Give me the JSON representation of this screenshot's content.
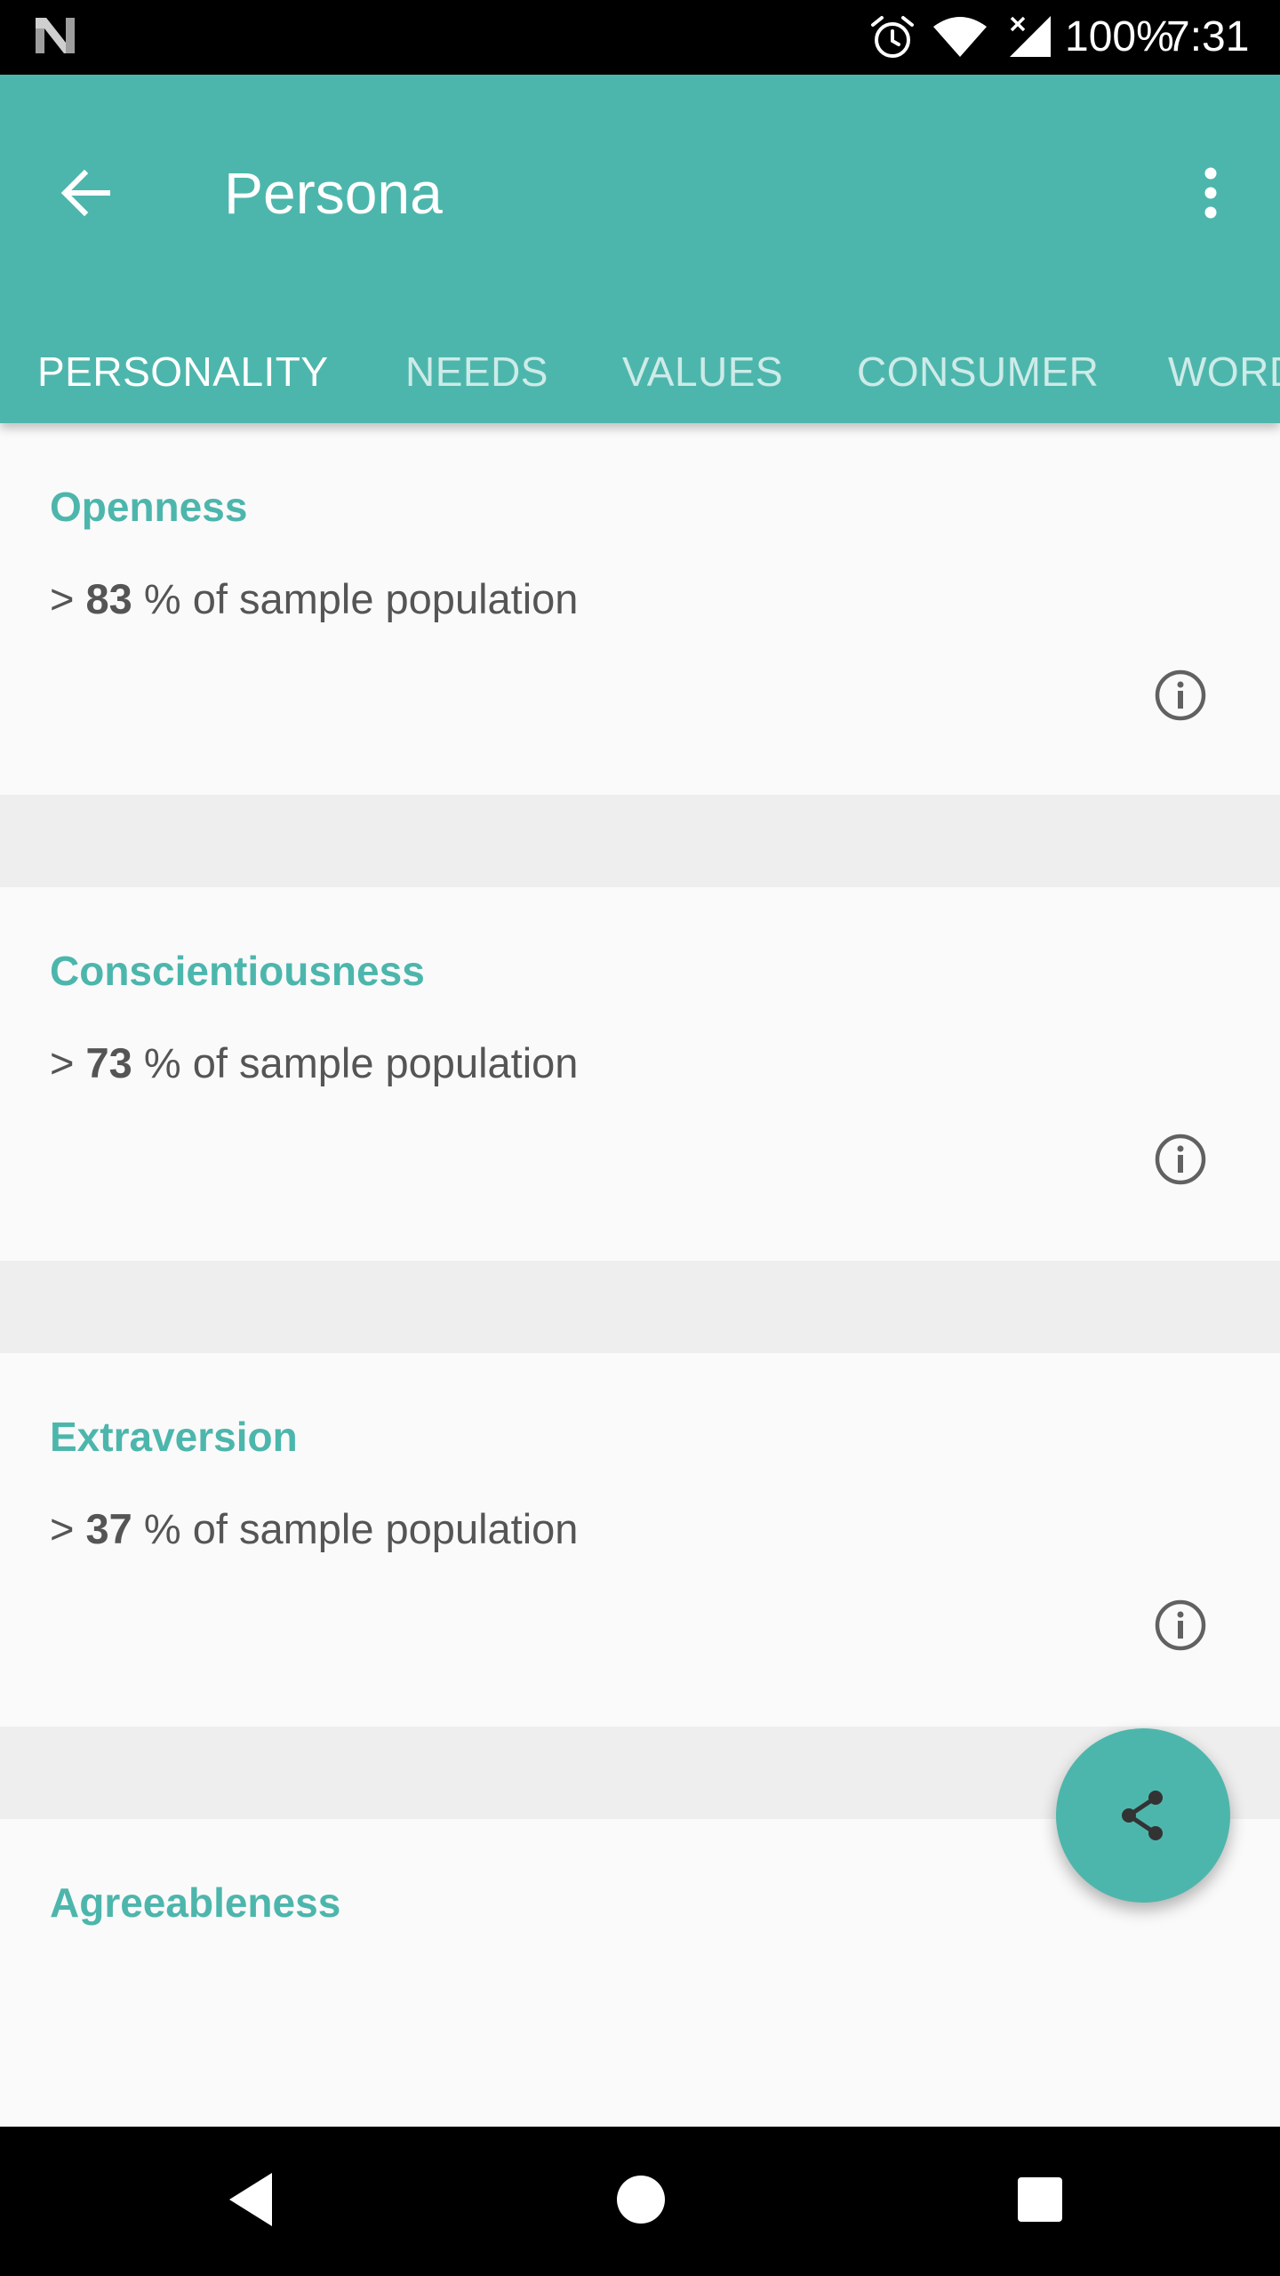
{
  "status_bar": {
    "battery": "100%",
    "time": "7:31",
    "icons": [
      "n-logo-icon",
      "alarm-icon",
      "wifi-icon",
      "signal-icon"
    ]
  },
  "app_bar": {
    "title": "Persona",
    "back_icon": "arrow-back-icon",
    "overflow_icon": "more-vert-icon",
    "color": "#4db6ac"
  },
  "tabs": [
    {
      "label": "PERSONALITY",
      "active": true
    },
    {
      "label": "NEEDS",
      "active": false
    },
    {
      "label": "VALUES",
      "active": false
    },
    {
      "label": "CONSUMER",
      "active": false
    },
    {
      "label": "WORD",
      "active": false
    }
  ],
  "traits": [
    {
      "name": "Openness",
      "prefix": ">",
      "percent": "83",
      "suffix": "% of sample population"
    },
    {
      "name": "Conscientiousness",
      "prefix": ">",
      "percent": "73",
      "suffix": "% of sample population"
    },
    {
      "name": "Extraversion",
      "prefix": ">",
      "percent": "37",
      "suffix": "% of sample population"
    },
    {
      "name": "Agreeableness"
    }
  ],
  "fab": {
    "icon": "share-icon"
  },
  "nav_bar": {
    "icons": [
      "nav-back-icon",
      "nav-home-icon",
      "nav-recents-icon"
    ]
  }
}
